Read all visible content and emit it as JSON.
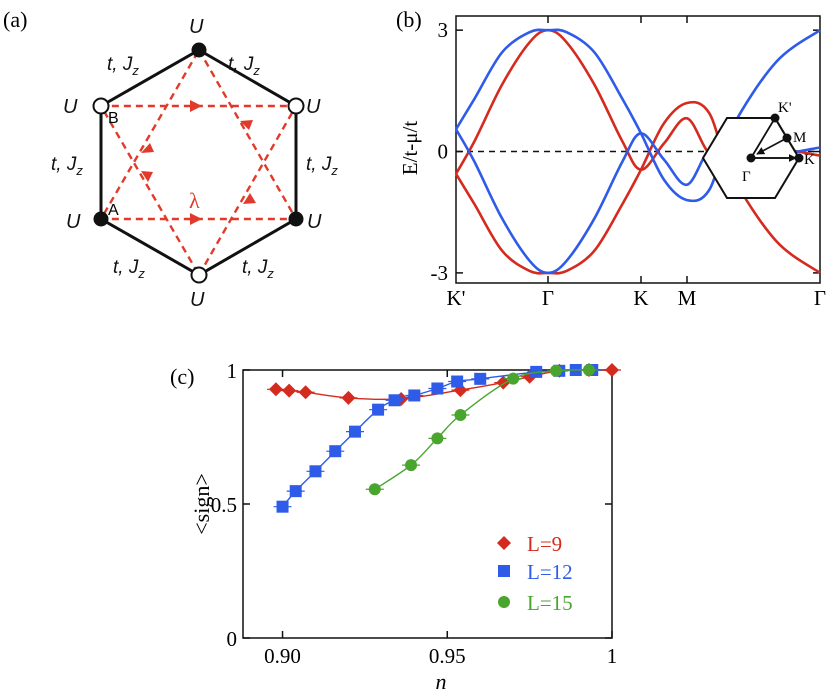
{
  "colors": {
    "red": "#d42b1e",
    "blue": "#2e5be8",
    "green": "#4aa52e",
    "black": "#111111"
  },
  "panel_labels": {
    "a": "(a)",
    "b": "(b)",
    "c": "(c)"
  },
  "panel_a": {
    "site_energy": "U",
    "bond_t": "t, ",
    "bond_j": "J",
    "bond_j_sub": "z",
    "soc_label": "λ",
    "site_a": "A",
    "site_b": "B"
  },
  "chart_data": [
    {
      "panel": "b",
      "type": "line",
      "title": "",
      "xlabel": "",
      "ylabel": "E/t-μ/t",
      "ylim": [
        -3.25,
        3.35
      ],
      "yticks": [
        -3,
        0,
        3
      ],
      "ytick_labels": [
        "-3",
        "0",
        "3"
      ],
      "xticks": [
        "K'",
        "Γ",
        "K",
        "M",
        "Γ"
      ],
      "x_knots": [
        0,
        1,
        2,
        2.5,
        4
      ],
      "fermi_level": 0,
      "series": [
        {
          "name": "red bands",
          "color": "red",
          "bands": [
            {
              "x": [
                0,
                0.2,
                0.5,
                0.8,
                1,
                1.2,
                1.5,
                1.8,
                2,
                2.25,
                2.5,
                2.75,
                3,
                3.5,
                4
              ],
              "y": [
                -0.55,
                0.25,
                1.65,
                2.7,
                3,
                2.7,
                1.65,
                0.25,
                -0.45,
                0.2,
                0.82,
                -0.05,
                -0.18,
                0.05,
                -0.1
              ]
            },
            {
              "x": [
                0,
                0.2,
                0.5,
                0.8,
                1,
                1.2,
                1.5,
                1.8,
                2,
                2.25,
                2.5,
                2.75,
                3,
                3.5,
                4
              ],
              "y": [
                -0.55,
                -1.3,
                -2.45,
                -2.95,
                -3,
                -2.95,
                -2.45,
                -1.3,
                -0.45,
                0.7,
                1.2,
                0.95,
                -0.55,
                -2.2,
                -3
              ]
            }
          ]
        },
        {
          "name": "blue bands",
          "color": "blue",
          "bands": [
            {
              "x": [
                0,
                0.2,
                0.5,
                0.8,
                1,
                1.2,
                1.5,
                1.8,
                2,
                2.25,
                2.5,
                2.75,
                3,
                3.5,
                4
              ],
              "y": [
                0.55,
                1.3,
                2.45,
                2.95,
                3,
                2.95,
                2.45,
                1.3,
                0.45,
                -0.7,
                -1.2,
                -0.95,
                0.55,
                2.2,
                3
              ]
            },
            {
              "x": [
                0,
                0.2,
                0.5,
                0.8,
                1,
                1.2,
                1.5,
                1.8,
                2,
                2.25,
                2.5,
                2.75,
                3,
                3.5,
                4
              ],
              "y": [
                0.55,
                -0.25,
                -1.65,
                -2.7,
                -3,
                -2.7,
                -1.65,
                -0.25,
                0.45,
                -0.2,
                -0.82,
                0.05,
                0.18,
                -0.05,
                0.1
              ]
            }
          ]
        }
      ],
      "inset": {
        "gamma": "Γ",
        "k": "K",
        "k_prime": "K'",
        "m": "M"
      }
    },
    {
      "panel": "c",
      "type": "line",
      "title": "",
      "xlabel": "n",
      "ylabel": "<sign>",
      "xlim": [
        0.888,
        1.0
      ],
      "ylim": [
        0,
        1
      ],
      "xticks": [
        0.9,
        0.95,
        1
      ],
      "xtick_labels": [
        "0.90",
        "0.95",
        "1"
      ],
      "yticks": [
        0,
        0.5,
        1
      ],
      "ytick_labels": [
        "0",
        "0.5",
        "1"
      ],
      "legend_position": "lower-right",
      "series": [
        {
          "name": "L=9",
          "marker": "diamond",
          "color": "red",
          "x": [
            0.898,
            0.902,
            0.907,
            0.92,
            0.936,
            0.954,
            0.967,
            0.975,
            0.984,
            0.993,
            1.0
          ],
          "y": [
            0.928,
            0.923,
            0.917,
            0.896,
            0.892,
            0.925,
            0.953,
            0.975,
            0.997,
            1.0,
            1.0
          ]
        },
        {
          "name": "L=12",
          "marker": "square",
          "color": "blue",
          "x": [
            0.9,
            0.904,
            0.91,
            0.916,
            0.922,
            0.929,
            0.934,
            0.94,
            0.947,
            0.953,
            0.96,
            0.977,
            0.984,
            0.989,
            0.994
          ],
          "y": [
            0.49,
            0.548,
            0.622,
            0.697,
            0.77,
            0.852,
            0.887,
            0.905,
            0.931,
            0.957,
            0.967,
            0.993,
            0.997,
            1.0,
            1.0
          ]
        },
        {
          "name": "L=15",
          "marker": "circle",
          "color": "green",
          "x": [
            0.928,
            0.939,
            0.947,
            0.954,
            0.97,
            0.983,
            0.993
          ],
          "y": [
            0.555,
            0.645,
            0.745,
            0.832,
            0.968,
            0.997,
            1.0
          ]
        }
      ]
    }
  ]
}
